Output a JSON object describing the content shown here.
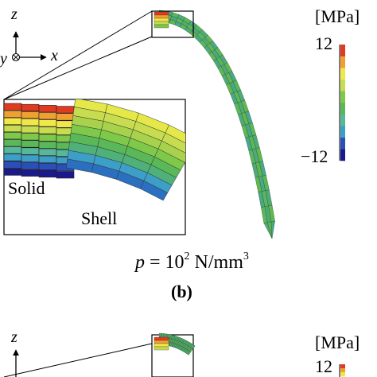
{
  "axes": {
    "z": "z",
    "x": "x",
    "y": "y"
  },
  "panel_b": {
    "inset": {
      "solid_label": "Solid",
      "shell_label": "Shell"
    },
    "load": {
      "p": "p",
      "eq": " = 10",
      "exp": "2",
      "unit": " N/mm",
      "unit_exp": "3"
    },
    "caption": "(b)"
  },
  "colorbar_b": {
    "unit": "[MPa]",
    "max_label": "12",
    "min_label": "−12"
  },
  "panel_c": {
    "z": "z"
  },
  "colorbar_c": {
    "unit": "[MPa]",
    "max_label": "12"
  },
  "colors": {
    "scale": [
      "#1a1a8c",
      "#2a4fb8",
      "#3d9ec8",
      "#55b89a",
      "#5ab858",
      "#7ec84a",
      "#c8dc50",
      "#f0e848",
      "#f0a030",
      "#e03a20"
    ]
  }
}
